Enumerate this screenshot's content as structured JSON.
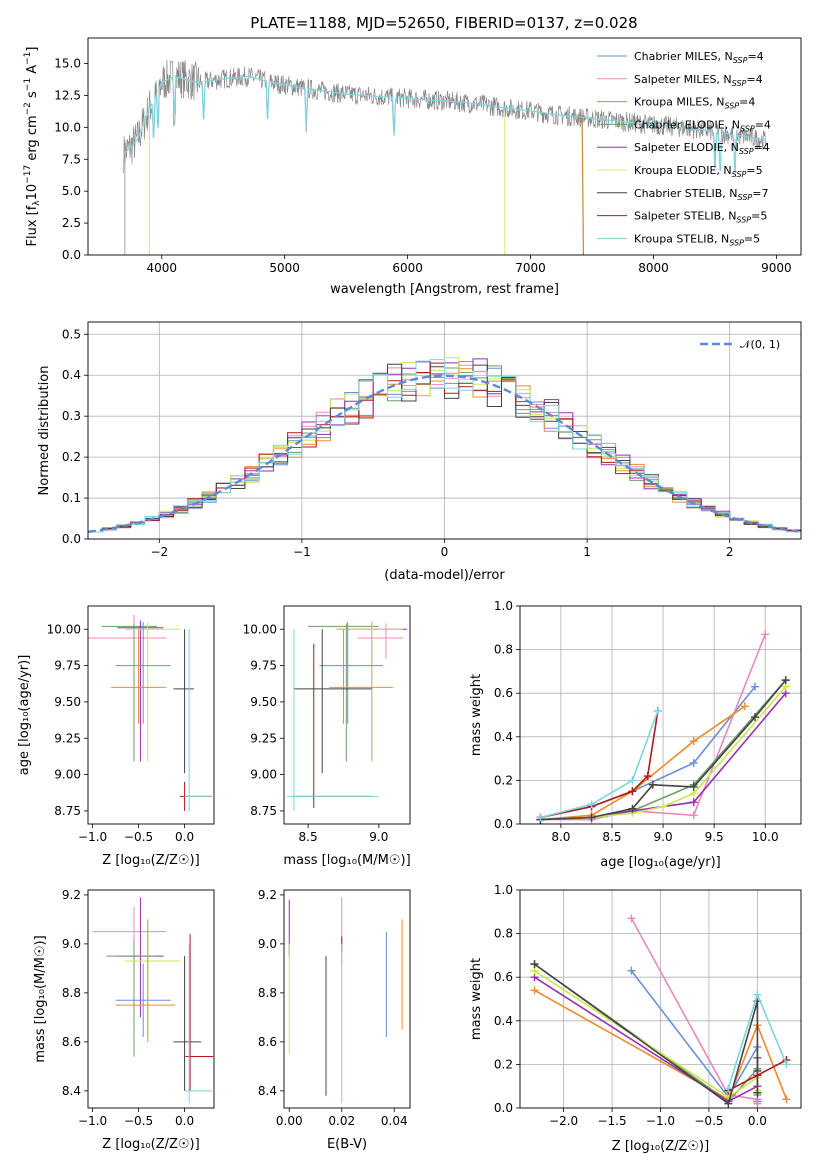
{
  "figure": {
    "title": "PLATE=1188, MJD=52650, FIBERID=0137, z=0.028"
  },
  "chart_data": [
    {
      "id": "spectrum",
      "type": "line",
      "xlabel": "wavelength [Angstrom, rest frame]",
      "ylabel": "Flux [f_λ 10^-17 erg cm^-2 s^-1 A^-1]",
      "xlim": [
        3400,
        9200
      ],
      "ylim": [
        0,
        17
      ],
      "xticks": [
        4000,
        5000,
        6000,
        7000,
        8000,
        9000
      ],
      "yticks": [
        0.0,
        2.5,
        5.0,
        7.5,
        10.0,
        12.5,
        15.0
      ],
      "grid": false,
      "legend_position": "top-right",
      "legend": [
        {
          "text": "Chabrier MILES, N",
          "sub": "SSP",
          "tail": "=4",
          "color": "#6a8fd8"
        },
        {
          "text": "Salpeter MILES, N",
          "sub": "SSP",
          "tail": "=4",
          "color": "#e888c0"
        },
        {
          "text": "Kroupa MILES, N",
          "sub": "SSP",
          "tail": "=4",
          "color": "#c88a30"
        },
        {
          "text": "Chabrier ELODIE, N",
          "sub": "SSP",
          "tail": "=4",
          "color": "#6e9e6a"
        },
        {
          "text": "Salpeter ELODIE, N",
          "sub": "SSP",
          "tail": "=4",
          "color": "#9b2fb0"
        },
        {
          "text": "Kroupa ELODIE, N",
          "sub": "SSP",
          "tail": "=5",
          "color": "#dfe86a"
        },
        {
          "text": "Chabrier STELIB, N",
          "sub": "SSP",
          "tail": "=7",
          "color": "#444444"
        },
        {
          "text": "Salpeter STELIB, N",
          "sub": "SSP",
          "tail": "=5",
          "color": "#b01a1a"
        },
        {
          "text": "Kroupa STELIB, N",
          "sub": "SSP",
          "tail": "=5",
          "color": "#7fd4de"
        }
      ],
      "data_color": "#888888",
      "continuum": {
        "x": [
          3700,
          3800,
          3900,
          4000,
          4100,
          4300,
          4500,
          4700,
          4900,
          5200,
          5500,
          5800,
          6100,
          6400,
          6600,
          6800,
          7000,
          7200,
          7400,
          7600,
          7800,
          8000,
          8200,
          8400,
          8600,
          8800,
          8900
        ],
        "y": [
          8.0,
          9.0,
          11.5,
          13.5,
          14.0,
          13.5,
          13.8,
          14.0,
          13.5,
          13.0,
          12.6,
          12.4,
          12.2,
          12.0,
          11.8,
          11.5,
          11.3,
          11.0,
          10.8,
          10.6,
          10.4,
          10.2,
          10.0,
          9.8,
          9.5,
          9.2,
          9.0
        ]
      },
      "model_cutoffs": [
        {
          "color": "#dfe86a",
          "from": 3900,
          "to": 3900,
          "drop": 0
        },
        {
          "color": "#c88a30",
          "from": 7430,
          "to": 7430,
          "drop": 0
        },
        {
          "color": "#dfe86a",
          "from": 6800,
          "to": 6800,
          "drop": 0
        }
      ]
    },
    {
      "id": "residuals",
      "type": "area",
      "xlabel": "(data-model)/error",
      "ylabel": "Normed distribution",
      "xlim": [
        -2.5,
        2.5
      ],
      "ylim": [
        0,
        0.53
      ],
      "xticks": [
        -2,
        -1,
        0,
        1,
        2
      ],
      "yticks": [
        0.0,
        0.1,
        0.2,
        0.3,
        0.4,
        0.5
      ],
      "grid": true,
      "legend_position": "top-right",
      "legend": [
        {
          "text": "𝒩(0, 1)",
          "color": "#5b8bd9"
        }
      ],
      "bin_width": 0.1,
      "series": [
        {
          "name": "Chabrier MILES",
          "color": "#6a8fd8"
        },
        {
          "name": "Salpeter MILES",
          "color": "#e888c0"
        },
        {
          "name": "Kroupa MILES",
          "color": "#f08a2c"
        },
        {
          "name": "Chabrier ELODIE",
          "color": "#6e9e6a"
        },
        {
          "name": "Salpeter ELODIE",
          "color": "#9b2fb0"
        },
        {
          "name": "Kroupa ELODIE",
          "color": "#c8e850"
        },
        {
          "name": "Chabrier STELIB",
          "color": "#444444"
        },
        {
          "name": "Salpeter STELIB",
          "color": "#b01a1a"
        },
        {
          "name": "Kroupa STELIB",
          "color": "#7fd4de"
        }
      ]
    },
    {
      "id": "age-vs-Z",
      "type": "scatter",
      "xlabel": "Z [log₁₀(Z/Z☉)]",
      "ylabel": "age  [log₁₀(age/yr)]",
      "xlim": [
        -1.05,
        0.32
      ],
      "ylim": [
        8.66,
        10.16
      ],
      "xticks": [
        -1.0,
        -0.5,
        0.0
      ],
      "yticks": [
        8.75,
        9.0,
        9.25,
        9.5,
        9.75,
        10.0
      ],
      "grid": false,
      "points": [
        {
          "color": "#e888c0",
          "x": -0.55,
          "xe": [
            -0.55,
            0.35
          ],
          "y": 9.94,
          "ye": [
            -0.16,
            0.16
          ]
        },
        {
          "color": "#6e9e6a",
          "x": -0.55,
          "xe": [
            -0.35,
            0.25
          ],
          "y": 10.02,
          "ye": [
            -0.93,
            0.02
          ]
        },
        {
          "color": "#9b2fb0",
          "x": -0.48,
          "xe": [
            -0.25,
            0.25
          ],
          "y": 10.01,
          "ye": [
            -0.92,
            0.05
          ]
        },
        {
          "color": "#c8e850",
          "x": -0.4,
          "xe": [
            -0.25,
            0.35
          ],
          "y": 10.0,
          "ye": [
            -0.91,
            0.05
          ]
        },
        {
          "color": "#6a8fd8",
          "x": -0.45,
          "xe": [
            -0.3,
            0.3
          ],
          "y": 9.75,
          "ye": [
            -0.4,
            0.3
          ]
        },
        {
          "color": "#f08a2c",
          "x": -0.5,
          "xe": [
            -0.3,
            0.3
          ],
          "y": 9.6,
          "ye": [
            -0.25,
            0.4
          ]
        },
        {
          "color": "#444444",
          "x": 0.0,
          "xe": [
            -0.12,
            0.1
          ],
          "y": 9.59,
          "ye": [
            -0.58,
            0.41
          ]
        },
        {
          "color": "#b01a1a",
          "x": 0.0,
          "xe": [
            -0.05,
            0.3
          ],
          "y": 8.85,
          "ye": [
            -0.1,
            0.1
          ]
        },
        {
          "color": "#7fd4de",
          "x": 0.05,
          "xe": [
            -0.05,
            0.25
          ],
          "y": 8.85,
          "ye": [
            -0.1,
            1.15
          ]
        }
      ]
    },
    {
      "id": "age-vs-mass",
      "type": "scatter",
      "xlabel": "mass [log₁₀(M/M☉)]",
      "ylabel": "",
      "xlim": [
        8.33,
        9.22
      ],
      "ylim": [
        8.66,
        10.16
      ],
      "xticks": [
        8.5,
        9.0
      ],
      "yticks": [
        8.75,
        9.0,
        9.25,
        9.5,
        9.75,
        10.0
      ],
      "grid": false,
      "points": [
        {
          "color": "#e888c0",
          "x": 9.05,
          "xe": [
            -0.2,
            0.12
          ],
          "y": 9.94,
          "ye": [
            -0.14,
            0.1
          ]
        },
        {
          "color": "#6e9e6a",
          "x": 8.77,
          "xe": [
            -0.27,
            0.23
          ],
          "y": 10.02,
          "ye": [
            -0.93,
            0.02
          ]
        },
        {
          "color": "#9b2fb0",
          "x": 8.95,
          "xe": [
            -0.25,
            0.25
          ],
          "y": 10.0,
          "ye": [
            -0.91,
            0.05
          ]
        },
        {
          "color": "#c8e850",
          "x": 8.95,
          "xe": [
            -0.25,
            0.22
          ],
          "y": 10.0,
          "ye": [
            -0.91,
            0.05
          ]
        },
        {
          "color": "#6a8fd8",
          "x": 8.78,
          "xe": [
            -0.2,
            0.25
          ],
          "y": 9.75,
          "ye": [
            -0.4,
            0.3
          ]
        },
        {
          "color": "#f08a2c",
          "x": 8.75,
          "xe": [
            -0.1,
            0.35
          ],
          "y": 9.6,
          "ye": [
            -0.25,
            0.4
          ]
        },
        {
          "color": "#444444",
          "x": 8.6,
          "xe": [
            -0.2,
            0.35
          ],
          "y": 9.59,
          "ye": [
            -0.58,
            0.41
          ]
        },
        {
          "color": "#b01a1a",
          "x": 8.54,
          "xe": [
            -0.14,
            0.4
          ],
          "y": 8.85,
          "ye": [
            -0.08,
            1.05
          ]
        },
        {
          "color": "#7fd4de",
          "x": 8.4,
          "xe": [
            -0.05,
            0.6
          ],
          "y": 8.85,
          "ye": [
            -0.1,
            1.15
          ]
        }
      ]
    },
    {
      "id": "weight-vs-age",
      "type": "line",
      "xlabel": "age  [log₁₀(age/yr)]",
      "ylabel": "mass weight",
      "xlim": [
        7.6,
        10.35
      ],
      "ylim": [
        0,
        1.0
      ],
      "xticks": [
        8.0,
        8.5,
        9.0,
        9.5,
        10.0
      ],
      "yticks": [
        0.0,
        0.2,
        0.4,
        0.6,
        0.8,
        1.0
      ],
      "grid": true,
      "series": [
        {
          "color": "#6a8fd8",
          "x": [
            7.8,
            8.3,
            8.7,
            9.3,
            9.9
          ],
          "y": [
            0.03,
            0.08,
            0.15,
            0.28,
            0.63
          ]
        },
        {
          "color": "#e888c0",
          "x": [
            7.8,
            8.3,
            8.7,
            9.3,
            10.0
          ],
          "y": [
            0.02,
            0.02,
            0.06,
            0.04,
            0.87
          ]
        },
        {
          "color": "#f08a2c",
          "x": [
            7.8,
            8.3,
            8.7,
            9.3,
            9.8
          ],
          "y": [
            0.02,
            0.04,
            0.15,
            0.38,
            0.54
          ]
        },
        {
          "color": "#6e9e6a",
          "x": [
            7.8,
            8.3,
            8.7,
            9.3,
            10.2
          ],
          "y": [
            0.02,
            0.03,
            0.06,
            0.18,
            0.66
          ]
        },
        {
          "color": "#9b2fb0",
          "x": [
            7.8,
            8.3,
            8.7,
            9.3,
            10.2
          ],
          "y": [
            0.02,
            0.03,
            0.06,
            0.1,
            0.6
          ]
        },
        {
          "color": "#c8e850",
          "x": [
            7.8,
            8.3,
            8.7,
            9.0,
            9.3,
            10.2
          ],
          "y": [
            0.02,
            0.03,
            0.05,
            0.08,
            0.14,
            0.63
          ]
        },
        {
          "color": "#444444",
          "x": [
            7.8,
            8.3,
            8.7,
            8.9,
            9.3,
            9.9,
            10.2
          ],
          "y": [
            0.02,
            0.03,
            0.07,
            0.18,
            0.17,
            0.49,
            0.66
          ]
        },
        {
          "color": "#b01a1a",
          "x": [
            7.8,
            8.3,
            8.7,
            8.85,
            8.95
          ],
          "y": [
            0.03,
            0.08,
            0.15,
            0.22,
            0.52
          ]
        },
        {
          "color": "#7fd4de",
          "x": [
            7.8,
            8.3,
            8.7,
            8.95
          ],
          "y": [
            0.03,
            0.09,
            0.2,
            0.52
          ]
        }
      ]
    },
    {
      "id": "mass-vs-Z",
      "type": "scatter",
      "xlabel": "Z [log₁₀(Z/Z☉)]",
      "ylabel": "mass [log₁₀(M/M☉)]",
      "xlim": [
        -1.05,
        0.32
      ],
      "ylim": [
        8.33,
        9.22
      ],
      "xticks": [
        -1.0,
        -0.5,
        0.0
      ],
      "yticks": [
        8.4,
        8.6,
        8.8,
        9.0,
        9.2
      ],
      "grid": false,
      "points": [
        {
          "color": "#e888c0",
          "x": -0.55,
          "xe": [
            -0.45,
            0.35
          ],
          "y": 9.05,
          "ye": [
            -0.14,
            0.1
          ]
        },
        {
          "color": "#9b2fb0",
          "x": -0.48,
          "xe": [
            -0.25,
            0.25
          ],
          "y": 8.95,
          "ye": [
            -0.25,
            0.24
          ]
        },
        {
          "color": "#6e9e6a",
          "x": -0.55,
          "xe": [
            -0.3,
            0.25
          ],
          "y": 8.95,
          "ye": [
            -0.41,
            0.06
          ]
        },
        {
          "color": "#c8e850",
          "x": -0.4,
          "xe": [
            -0.25,
            0.35
          ],
          "y": 8.93,
          "ye": [
            -0.3,
            0.15
          ]
        },
        {
          "color": "#6a8fd8",
          "x": -0.45,
          "xe": [
            -0.3,
            0.3
          ],
          "y": 8.77,
          "ye": [
            -0.15,
            0.15
          ]
        },
        {
          "color": "#f08a2c",
          "x": -0.4,
          "xe": [
            -0.35,
            0.3
          ],
          "y": 8.75,
          "ye": [
            -0.15,
            0.35
          ]
        },
        {
          "color": "#444444",
          "x": 0.0,
          "xe": [
            -0.12,
            0.18
          ],
          "y": 8.6,
          "ye": [
            -0.2,
            0.35
          ]
        },
        {
          "color": "#b01a1a",
          "x": 0.06,
          "xe": [
            -0.05,
            0.25
          ],
          "y": 8.54,
          "ye": [
            -0.14,
            0.5
          ]
        },
        {
          "color": "#7fd4de",
          "x": 0.05,
          "xe": [
            -0.05,
            0.25
          ],
          "y": 8.4,
          "ye": [
            -0.05,
            0.6
          ]
        }
      ]
    },
    {
      "id": "mass-vs-ebv",
      "type": "scatter",
      "xlabel": "E(B-V)",
      "ylabel": "",
      "xlim": [
        -0.002,
        0.046
      ],
      "ylim": [
        8.33,
        9.22
      ],
      "xticks": [
        0.0,
        0.02,
        0.04
      ],
      "yticks": [
        8.4,
        8.6,
        8.8,
        9.0,
        9.2
      ],
      "grid": false,
      "points": [
        {
          "color": "#9b2fb0",
          "x": 0.0,
          "y": 9.0,
          "ye": [
            -0.05,
            0.18
          ]
        },
        {
          "color": "#c8e850",
          "x": 0.0,
          "y": 8.75,
          "ye": [
            -0.2,
            0.25
          ]
        },
        {
          "color": "#444444",
          "x": 0.014,
          "y": 8.6,
          "ye": [
            -0.22,
            0.35
          ]
        },
        {
          "color": "#e888c0",
          "x": 0.02,
          "y": 9.05,
          "ye": [
            -0.14,
            0.14
          ]
        },
        {
          "color": "#b01a1a",
          "x": 0.02,
          "y": 9.0,
          "ye": [
            -0.03,
            0.03
          ]
        },
        {
          "color": "#7fd4de",
          "x": 0.02,
          "y": 8.4,
          "ye": [
            -0.05,
            0.6
          ]
        },
        {
          "color": "#6a8fd8",
          "x": 0.037,
          "y": 8.8,
          "ye": [
            -0.18,
            0.25
          ]
        },
        {
          "color": "#f08a2c",
          "x": 0.043,
          "y": 8.85,
          "ye": [
            -0.2,
            0.25
          ]
        }
      ]
    },
    {
      "id": "weight-vs-Z",
      "type": "line",
      "xlabel": "Z [log₁₀(Z/Z☉)]",
      "ylabel": "mass weight",
      "xlim": [
        -2.45,
        0.45
      ],
      "ylim": [
        0,
        1.0
      ],
      "xticks": [
        -2.0,
        -1.5,
        -1.0,
        -0.5,
        0.0
      ],
      "yticks": [
        0.0,
        0.2,
        0.4,
        0.6,
        0.8,
        1.0
      ],
      "grid": true,
      "series": [
        {
          "color": "#6a8fd8",
          "x": [
            -1.3,
            -0.3,
            0.0,
            0.0,
            0.0
          ],
          "y": [
            0.63,
            0.05,
            0.28,
            0.03,
            0.03
          ]
        },
        {
          "color": "#e888c0",
          "x": [
            -1.3,
            -0.3,
            0.0,
            0.0
          ],
          "y": [
            0.87,
            0.06,
            0.04,
            0.02
          ]
        },
        {
          "color": "#f08a2c",
          "x": [
            -2.3,
            -0.3,
            0.0,
            0.3
          ],
          "y": [
            0.54,
            0.04,
            0.38,
            0.04
          ]
        },
        {
          "color": "#6e9e6a",
          "x": [
            -2.3,
            -0.3,
            0.0,
            0.0
          ],
          "y": [
            0.66,
            0.03,
            0.18,
            0.06
          ]
        },
        {
          "color": "#9b2fb0",
          "x": [
            -2.3,
            -0.3,
            0.0,
            0.0
          ],
          "y": [
            0.6,
            0.03,
            0.1,
            0.23
          ]
        },
        {
          "color": "#c8e850",
          "x": [
            -2.3,
            -0.3,
            0.0,
            0.0
          ],
          "y": [
            0.63,
            0.05,
            0.14,
            0.08
          ]
        },
        {
          "color": "#444444",
          "x": [
            -2.3,
            -0.3,
            0.0,
            0.0,
            0.0
          ],
          "y": [
            0.66,
            0.02,
            0.49,
            0.17,
            0.07
          ]
        },
        {
          "color": "#b01a1a",
          "x": [
            -0.3,
            0.0,
            0.3
          ],
          "y": [
            0.08,
            0.15,
            0.22
          ]
        },
        {
          "color": "#7fd4de",
          "x": [
            -0.3,
            0.0,
            0.3
          ],
          "y": [
            0.09,
            0.52,
            0.2
          ]
        }
      ]
    }
  ]
}
